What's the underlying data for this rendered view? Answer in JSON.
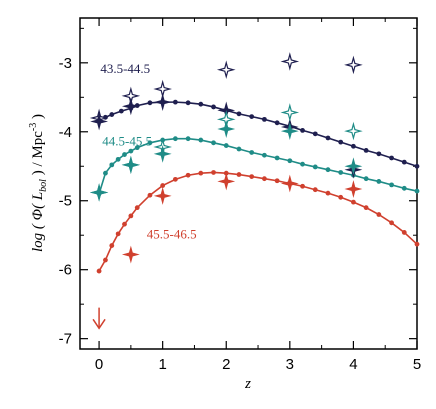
{
  "chart_data": {
    "type": "scatter",
    "title": "",
    "xlabel": "z",
    "ylabel": "log ( Φ( L_bol ) / Mpc^-3 )",
    "ylabel_parts": {
      "prefix": "log ( Φ( ",
      "L": "L",
      "bol": "bol",
      "mid": " ) / Mpc",
      "sup": "-3",
      "suffix": " )"
    },
    "xlim": [
      -0.3,
      5
    ],
    "ylim": [
      -7.15,
      -2.35
    ],
    "x_ticks": [
      0,
      1,
      2,
      3,
      4,
      5
    ],
    "x_tick_labels": [
      "0",
      "1",
      "2",
      "3",
      "4",
      "5"
    ],
    "y_ticks": [
      -7,
      -6,
      -5,
      -4,
      -3
    ],
    "y_tick_labels": [
      "-7",
      "-6",
      "-5",
      "-4",
      "-3"
    ],
    "grid": false,
    "legend": "none",
    "upper_limit_arrow": {
      "x": 0,
      "y_from": -6.55,
      "y_to": -6.85,
      "color": "#d0402e"
    },
    "series": [
      {
        "name": "43.5-44.5",
        "color": "#1f1f4f",
        "curve": {
          "x": [
            0,
            0.1,
            0.2,
            0.35,
            0.5,
            0.6,
            0.8,
            1,
            1.2,
            1.4,
            1.6,
            1.8,
            2,
            2.2,
            2.4,
            2.6,
            2.8,
            3,
            3.2,
            3.4,
            3.6,
            3.8,
            4,
            4.2,
            4.4,
            4.6,
            4.8,
            5
          ],
          "y": [
            -3.83,
            -3.79,
            -3.75,
            -3.7,
            -3.66,
            -3.62,
            -3.58,
            -3.57,
            -3.57,
            -3.58,
            -3.6,
            -3.64,
            -3.69,
            -3.74,
            -3.78,
            -3.82,
            -3.87,
            -3.92,
            -3.98,
            -4.03,
            -4.09,
            -4.15,
            -4.21,
            -4.27,
            -4.32,
            -4.38,
            -4.44,
            -4.5
          ]
        },
        "filled_points": {
          "x": [
            0,
            0.5,
            1,
            2,
            3,
            4
          ],
          "y": [
            -3.85,
            -3.63,
            -3.57,
            -3.69,
            -3.93,
            -4.55
          ]
        },
        "open_points": {
          "x": [
            0,
            0.5,
            1,
            2,
            3,
            4
          ],
          "y": [
            -3.8,
            -3.48,
            -3.38,
            -3.1,
            -2.98,
            -3.03
          ]
        }
      },
      {
        "name": "44.5-45.5",
        "color": "#1f8c87",
        "curve": {
          "x": [
            0,
            0.1,
            0.2,
            0.3,
            0.4,
            0.5,
            0.6,
            0.8,
            1,
            1.2,
            1.4,
            1.6,
            1.8,
            2,
            2.2,
            2.4,
            2.6,
            2.8,
            3,
            3.2,
            3.4,
            3.6,
            3.8,
            4,
            4.2,
            4.4,
            4.6,
            4.8,
            5
          ],
          "y": [
            -4.9,
            -4.6,
            -4.48,
            -4.4,
            -4.33,
            -4.28,
            -4.23,
            -4.16,
            -4.12,
            -4.1,
            -4.1,
            -4.12,
            -4.16,
            -4.2,
            -4.25,
            -4.3,
            -4.34,
            -4.38,
            -4.42,
            -4.47,
            -4.51,
            -4.55,
            -4.59,
            -4.63,
            -4.68,
            -4.72,
            -4.77,
            -4.82,
            -4.86
          ]
        },
        "filled_points": {
          "x": [
            0,
            0.5,
            1,
            2,
            3,
            4
          ],
          "y": [
            -4.88,
            -4.48,
            -4.32,
            -3.96,
            -3.99,
            -4.5
          ]
        },
        "open_points": {
          "x": [
            0,
            0.5,
            1,
            2,
            3,
            4
          ],
          "y": [
            -4.88,
            -4.48,
            -4.22,
            -3.82,
            -3.72,
            -3.99
          ]
        }
      },
      {
        "name": "45.5-46.5",
        "color": "#d0402e",
        "curve": {
          "x": [
            0,
            0.1,
            0.2,
            0.3,
            0.4,
            0.5,
            0.6,
            0.8,
            1,
            1.2,
            1.4,
            1.6,
            1.8,
            2,
            2.2,
            2.4,
            2.6,
            2.8,
            3,
            3.2,
            3.4,
            3.6,
            3.8,
            4,
            4.2,
            4.4,
            4.6,
            4.8,
            5
          ],
          "y": [
            -6.02,
            -5.86,
            -5.65,
            -5.48,
            -5.34,
            -5.22,
            -5.1,
            -4.92,
            -4.78,
            -4.69,
            -4.63,
            -4.6,
            -4.59,
            -4.6,
            -4.62,
            -4.65,
            -4.68,
            -4.71,
            -4.75,
            -4.79,
            -4.84,
            -4.89,
            -4.95,
            -5.02,
            -5.1,
            -5.2,
            -5.32,
            -5.46,
            -5.63
          ]
        },
        "filled_points": {
          "x": [
            0.5,
            1,
            2,
            3,
            4
          ],
          "y": [
            -5.78,
            -4.93,
            -4.72,
            -4.75,
            -4.83
          ]
        },
        "open_points": {
          "x": [],
          "y": []
        }
      }
    ]
  }
}
